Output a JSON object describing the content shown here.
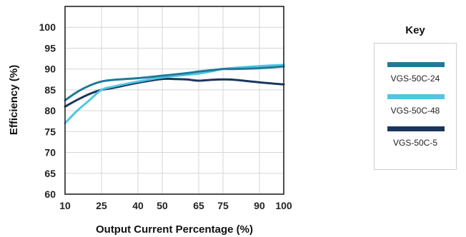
{
  "chart_data": {
    "type": "line",
    "xlabel": "Output Current Percentage (%)",
    "ylabel": "Efficiency (%)",
    "x_ticks": [
      10,
      25,
      40,
      50,
      65,
      75,
      90,
      100
    ],
    "y_ticks": [
      60,
      65,
      70,
      75,
      80,
      85,
      90,
      95,
      100
    ],
    "xlim": [
      10,
      100
    ],
    "ylim": [
      60,
      105
    ],
    "grid": true,
    "legend_title": "Key",
    "legend_position": "right",
    "series": [
      {
        "name": "VGS-50C-24",
        "color": "#1f7a99",
        "x": [
          10,
          15,
          20,
          25,
          30,
          40,
          50,
          60,
          65,
          70,
          75,
          80,
          90,
          100
        ],
        "y": [
          82.5,
          84.5,
          86.0,
          87.0,
          87.4,
          87.8,
          88.4,
          89.0,
          89.4,
          89.7,
          90.0,
          90.0,
          90.2,
          90.6
        ]
      },
      {
        "name": "VGS-50C-48",
        "color": "#4fc6e4",
        "x": [
          10,
          15,
          20,
          25,
          30,
          40,
          50,
          60,
          65,
          70,
          75,
          80,
          90,
          100
        ],
        "y": [
          77.0,
          80.0,
          82.5,
          85.0,
          85.8,
          87.0,
          88.0,
          88.6,
          88.9,
          89.4,
          90.0,
          90.3,
          90.7,
          91.0
        ]
      },
      {
        "name": "VGS-50C-5",
        "color": "#1a365d",
        "x": [
          10,
          15,
          20,
          25,
          30,
          40,
          50,
          55,
          60,
          65,
          70,
          75,
          80,
          90,
          100
        ],
        "y": [
          81.0,
          82.6,
          84.0,
          85.0,
          85.5,
          86.7,
          87.6,
          87.6,
          87.5,
          87.2,
          87.4,
          87.5,
          87.4,
          86.8,
          86.3
        ]
      }
    ]
  }
}
